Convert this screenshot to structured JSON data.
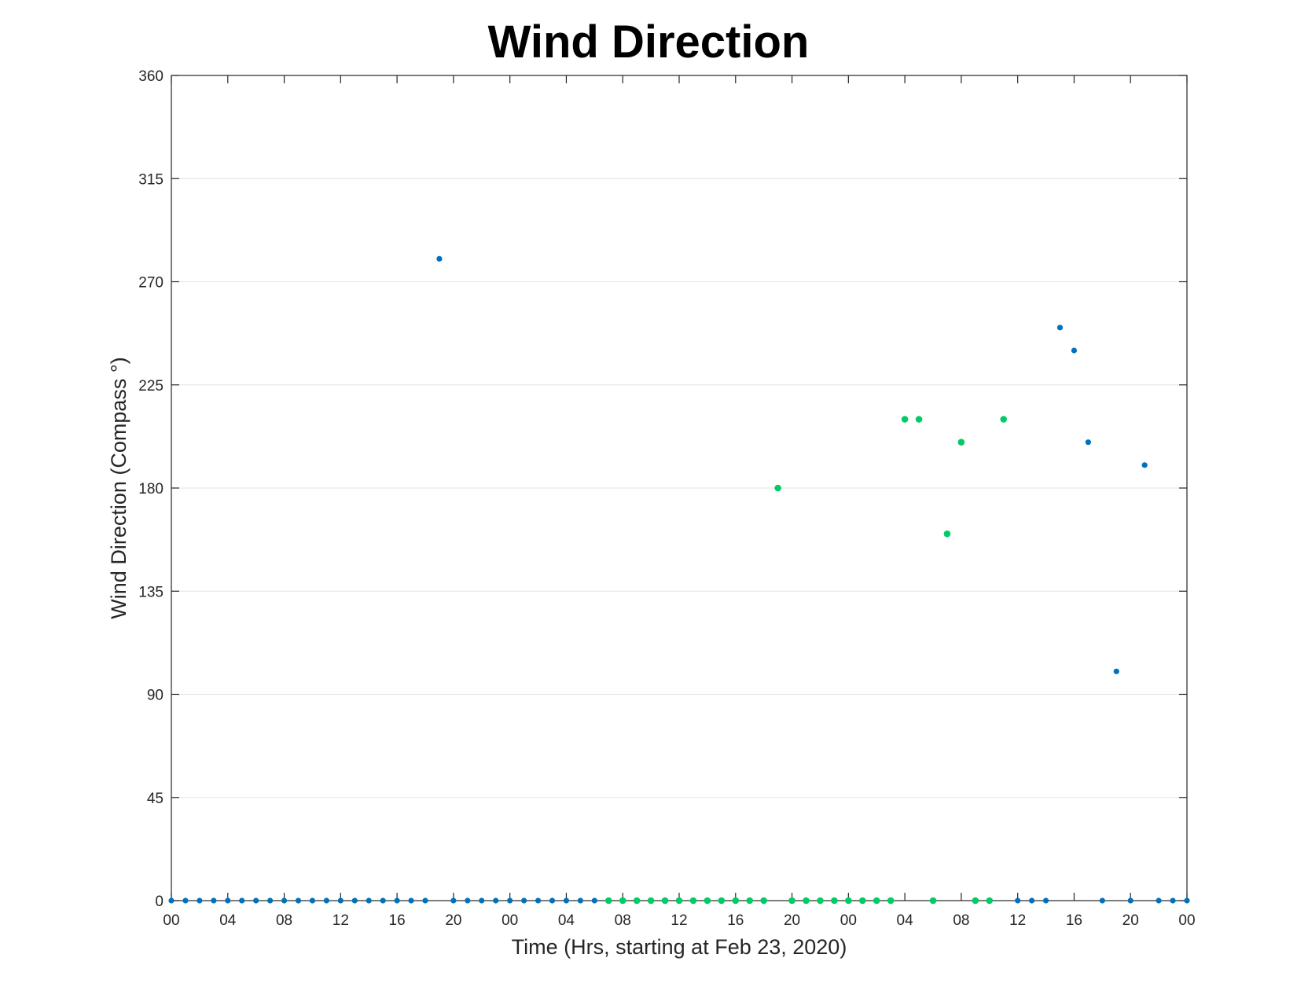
{
  "chart_data": {
    "type": "scatter",
    "title": "Wind Direction",
    "xlabel": "Time (Hrs, starting at Feb 23, 2020)",
    "ylabel": "Wind Direction (Compass °)",
    "xlim": [
      "Feb 23, 2020 00:00",
      "Feb 26, 2020 00:00"
    ],
    "ylim": [
      0,
      360
    ],
    "x_tick_labels": [
      "00",
      "04",
      "08",
      "12",
      "16",
      "20",
      "00",
      "04",
      "08",
      "12",
      "16",
      "20",
      "00",
      "04",
      "08",
      "12",
      "16",
      "20",
      "00"
    ],
    "y_ticks": [
      0,
      45,
      90,
      135,
      180,
      225,
      270,
      315,
      360
    ],
    "grid": "y-major",
    "colors": {
      "blue": "#0072bd",
      "green": "#00cc66"
    },
    "series": [
      {
        "color": "blue",
        "x": [
          "Feb 23, 2020 00:00",
          "Feb 23, 2020 01:00",
          "Feb 23, 2020 02:00",
          "Feb 23, 2020 03:00",
          "Feb 23, 2020 04:00",
          "Feb 23, 2020 05:00",
          "Feb 23, 2020 06:00",
          "Feb 23, 2020 07:00",
          "Feb 23, 2020 08:00",
          "Feb 23, 2020 09:00",
          "Feb 23, 2020 10:00",
          "Feb 23, 2020 11:00",
          "Feb 23, 2020 12:00",
          "Feb 23, 2020 13:00",
          "Feb 23, 2020 14:00",
          "Feb 23, 2020 15:00",
          "Feb 23, 2020 16:00",
          "Feb 23, 2020 17:00",
          "Feb 23, 2020 18:00",
          "Feb 23, 2020 19:00",
          "Feb 23, 2020 20:00",
          "Feb 23, 2020 21:00",
          "Feb 23, 2020 22:00",
          "Feb 23, 2020 23:00",
          "Feb 24, 2020 00:00",
          "Feb 24, 2020 01:00",
          "Feb 24, 2020 02:00",
          "Feb 24, 2020 03:00",
          "Feb 24, 2020 04:00",
          "Feb 24, 2020 05:00",
          "Feb 24, 2020 06:00",
          "Feb 25, 2020 12:00",
          "Feb 25, 2020 13:00",
          "Feb 25, 2020 14:00",
          "Feb 25, 2020 15:00",
          "Feb 25, 2020 16:00",
          "Feb 25, 2020 17:00",
          "Feb 25, 2020 18:00",
          "Feb 25, 2020 19:00",
          "Feb 25, 2020 20:00",
          "Feb 25, 2020 21:00",
          "Feb 25, 2020 22:00",
          "Feb 25, 2020 23:00",
          "Feb 26, 2020 00:00"
        ],
        "values": [
          0,
          0,
          0,
          0,
          0,
          0,
          0,
          0,
          0,
          0,
          0,
          0,
          0,
          0,
          0,
          0,
          0,
          0,
          0,
          280,
          0,
          0,
          0,
          0,
          0,
          0,
          0,
          0,
          0,
          0,
          0,
          0,
          0,
          0,
          250,
          240,
          200,
          0,
          100,
          0,
          190,
          0,
          0,
          0
        ]
      },
      {
        "color": "green",
        "x": [
          "Feb 24, 2020 07:00",
          "Feb 24, 2020 08:00",
          "Feb 24, 2020 09:00",
          "Feb 24, 2020 10:00",
          "Feb 24, 2020 11:00",
          "Feb 24, 2020 12:00",
          "Feb 24, 2020 13:00",
          "Feb 24, 2020 14:00",
          "Feb 24, 2020 15:00",
          "Feb 24, 2020 16:00",
          "Feb 24, 2020 17:00",
          "Feb 24, 2020 18:00",
          "Feb 24, 2020 19:00",
          "Feb 24, 2020 20:00",
          "Feb 24, 2020 21:00",
          "Feb 24, 2020 22:00",
          "Feb 24, 2020 23:00",
          "Feb 25, 2020 00:00",
          "Feb 25, 2020 01:00",
          "Feb 25, 2020 02:00",
          "Feb 25, 2020 03:00",
          "Feb 25, 2020 04:00",
          "Feb 25, 2020 05:00",
          "Feb 25, 2020 06:00",
          "Feb 25, 2020 07:00",
          "Feb 25, 2020 08:00",
          "Feb 25, 2020 09:00",
          "Feb 25, 2020 10:00",
          "Feb 25, 2020 11:00"
        ],
        "values": [
          0,
          0,
          0,
          0,
          0,
          0,
          0,
          0,
          0,
          0,
          0,
          0,
          180,
          0,
          0,
          0,
          0,
          0,
          0,
          0,
          0,
          210,
          210,
          0,
          160,
          200,
          0,
          0,
          210
        ]
      }
    ]
  }
}
